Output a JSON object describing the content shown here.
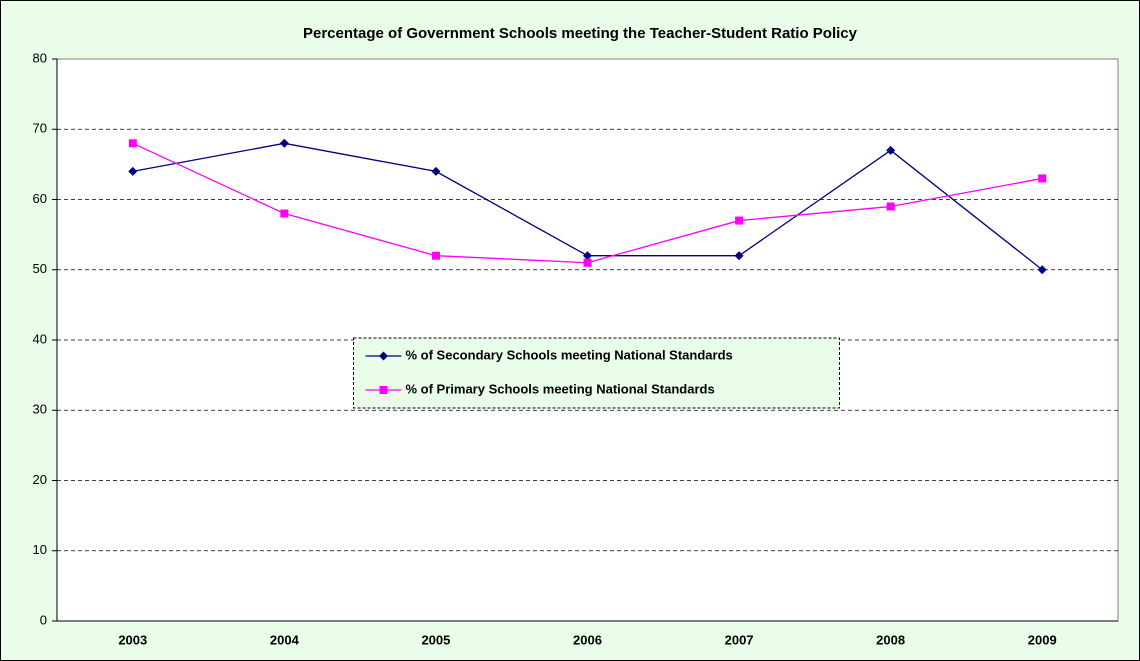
{
  "chart_data": {
    "type": "line",
    "title": "Percentage of Government Schools meeting the Teacher-Student Ratio Policy",
    "categories": [
      "2003",
      "2004",
      "2005",
      "2006",
      "2007",
      "2008",
      "2009"
    ],
    "series": [
      {
        "name": "% of Secondary Schools meeting National Standards",
        "color": "#000080",
        "marker": "diamond",
        "values": [
          64,
          68,
          64,
          52,
          52,
          67,
          50
        ]
      },
      {
        "name": "% of Primary Schools meeting National Standards",
        "color": "#ff00ff",
        "marker": "square",
        "values": [
          68,
          58,
          52,
          51,
          57,
          59,
          63
        ]
      }
    ],
    "ylim": [
      0,
      80
    ],
    "yticks": [
      0,
      10,
      20,
      30,
      40,
      50,
      60,
      70,
      80
    ],
    "grid": true,
    "legend": "center"
  }
}
